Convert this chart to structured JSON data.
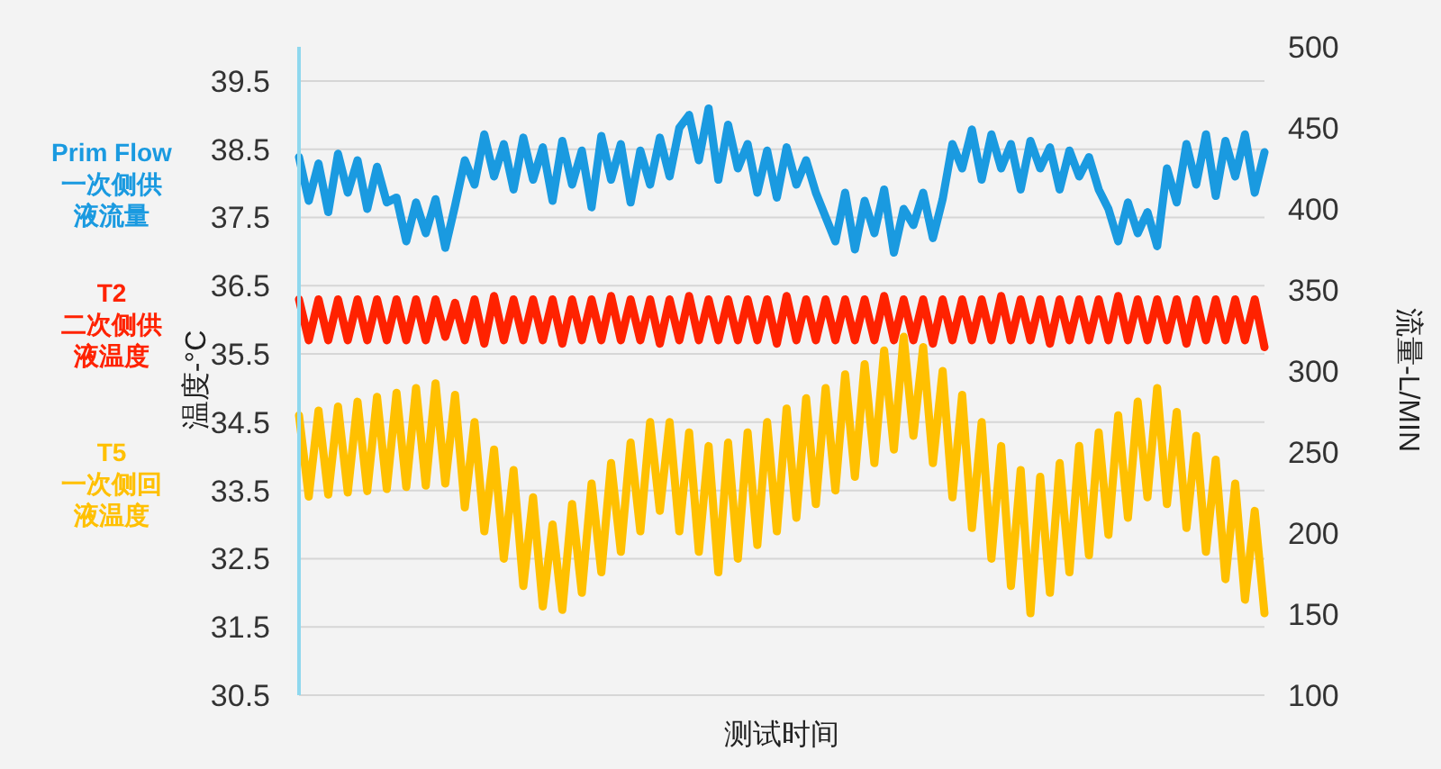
{
  "chart_data": {
    "type": "line",
    "xlabel": "测试时间",
    "ylabel": "温度-°C",
    "y2label": "流量-L/MIN",
    "categories": [
      null,
      null,
      null,
      null,
      null,
      null,
      null,
      null,
      null,
      null,
      null,
      null,
      null,
      null,
      null,
      null,
      null,
      null,
      null,
      null,
      null,
      null,
      null,
      null,
      null,
      null,
      null,
      null,
      null,
      null,
      null,
      null,
      null,
      null,
      null,
      null,
      null,
      null,
      null,
      null,
      null,
      null,
      null,
      null,
      null,
      null,
      null,
      null,
      null,
      null,
      null,
      null,
      null,
      null,
      null,
      null,
      null,
      null,
      null,
      null,
      null,
      null,
      null,
      null,
      null,
      null,
      null,
      null,
      null,
      null,
      null,
      null,
      null,
      null,
      null,
      null,
      null,
      null,
      null,
      null,
      null,
      null,
      null,
      null,
      null,
      null,
      null,
      null,
      null,
      null,
      null,
      null,
      null,
      null,
      null,
      null,
      null,
      null,
      null,
      null
    ],
    "ylim": [
      30.5,
      40
    ],
    "yticks": [
      30.5,
      31.5,
      32.5,
      33.5,
      34.5,
      35.5,
      36.5,
      37.5,
      38.5,
      39.5
    ],
    "y2lim": [
      100,
      500
    ],
    "y2ticks": [
      100,
      150,
      200,
      250,
      300,
      350,
      400,
      450,
      500
    ],
    "grid": "y",
    "legend": "left",
    "line_style": "solid",
    "marker": "none",
    "series": [
      {
        "name": "Prim Flow\n一次侧供液流量",
        "color": "#1a9ae0",
        "axis": "y2",
        "values": [
          432,
          405,
          428,
          398,
          434,
          410,
          430,
          400,
          426,
          404,
          407,
          380,
          404,
          385,
          406,
          376,
          402,
          430,
          415,
          446,
          420,
          440,
          412,
          444,
          418,
          438,
          405,
          442,
          415,
          436,
          401,
          445,
          418,
          440,
          404,
          436,
          415,
          444,
          420,
          450,
          458,
          430,
          462,
          418,
          452,
          425,
          440,
          410,
          436,
          407,
          438,
          415,
          430,
          410,
          395,
          380,
          410,
          375,
          405,
          385,
          412,
          373,
          400,
          390,
          410,
          382,
          406,
          440,
          425,
          449,
          418,
          446,
          425,
          440,
          412,
          442,
          425,
          438,
          412,
          436,
          420,
          432,
          412,
          400,
          380,
          404,
          385,
          398,
          377,
          425,
          404,
          440,
          415,
          446,
          408,
          442,
          420,
          446,
          410,
          435
        ]
      },
      {
        "name": "T2\n二次侧供液温度",
        "color": "#ff2200",
        "values": [
          36.3,
          35.7,
          36.3,
          35.7,
          36.3,
          35.7,
          36.3,
          35.7,
          36.3,
          35.7,
          36.3,
          35.7,
          36.3,
          35.7,
          36.3,
          35.75,
          36.25,
          35.7,
          36.3,
          35.65,
          36.35,
          35.7,
          36.3,
          35.7,
          36.3,
          35.7,
          36.3,
          35.65,
          36.3,
          35.7,
          36.3,
          35.7,
          36.35,
          35.7,
          36.3,
          35.7,
          36.3,
          35.65,
          36.3,
          35.7,
          36.35,
          35.7,
          36.3,
          35.7,
          36.3,
          35.7,
          36.3,
          35.7,
          36.3,
          35.65,
          36.35,
          35.7,
          36.3,
          35.7,
          36.3,
          35.7,
          36.3,
          35.7,
          36.3,
          35.7,
          36.35,
          35.7,
          36.3,
          35.7,
          36.3,
          35.65,
          36.3,
          35.7,
          36.3,
          35.7,
          36.3,
          35.7,
          36.35,
          35.7,
          36.3,
          35.7,
          36.3,
          35.65,
          36.3,
          35.7,
          36.3,
          35.7,
          36.3,
          35.7,
          36.35,
          35.7,
          36.3,
          35.7,
          36.3,
          35.7,
          36.3,
          35.65,
          36.3,
          35.7,
          36.3,
          35.7,
          36.3,
          35.7,
          36.3,
          35.6
        ]
      },
      {
        "name": "T5\n一次侧回液温度",
        "color": "#ffc000",
        "values": [
          34.6,
          33.41,
          34.67,
          33.44,
          34.73,
          33.47,
          34.8,
          33.49,
          34.87,
          33.52,
          34.93,
          33.55,
          35.0,
          33.57,
          35.07,
          33.6,
          34.9,
          33.25,
          34.5,
          32.9,
          34.1,
          32.5,
          33.8,
          32.1,
          33.4,
          31.8,
          33.0,
          31.75,
          33.3,
          32.0,
          33.6,
          32.3,
          33.9,
          32.6,
          34.2,
          32.9,
          34.5,
          33.2,
          34.5,
          32.9,
          34.35,
          32.6,
          34.15,
          32.3,
          34.2,
          32.5,
          34.35,
          32.7,
          34.5,
          32.9,
          34.7,
          33.1,
          34.85,
          33.3,
          35.0,
          33.5,
          35.2,
          33.7,
          35.35,
          33.9,
          35.55,
          34.1,
          35.75,
          34.3,
          35.6,
          33.9,
          35.25,
          33.4,
          34.9,
          32.95,
          34.5,
          32.5,
          34.15,
          32.1,
          33.8,
          31.7,
          33.7,
          32.0,
          33.9,
          32.3,
          34.15,
          32.55,
          34.35,
          32.85,
          34.6,
          33.1,
          34.8,
          33.4,
          35.0,
          33.3,
          34.65,
          32.95,
          34.3,
          32.6,
          33.95,
          32.2,
          33.6,
          31.9,
          33.2,
          31.7
        ]
      }
    ]
  }
}
